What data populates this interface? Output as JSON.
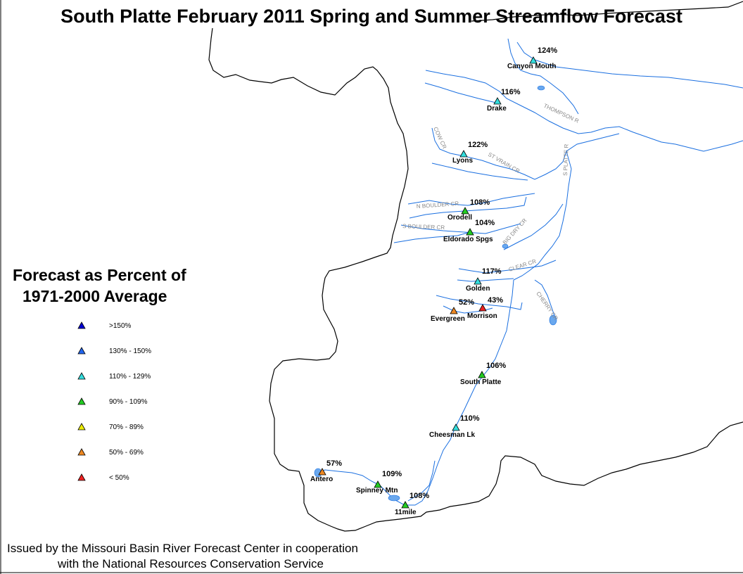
{
  "title": "South Platte February 2011 Spring and Summer Streamflow Forecast",
  "legend": {
    "title_line1": "Forecast as Percent of",
    "title_line2": "1971-2000 Average",
    "items": [
      {
        "label": ">150%",
        "color": "#0000d0"
      },
      {
        "label": "130% - 150%",
        "color": "#2266ee"
      },
      {
        "label": "110% - 129%",
        "color": "#33dddd"
      },
      {
        "label": "90% - 109%",
        "color": "#22cc22"
      },
      {
        "label": "70% - 89%",
        "color": "#eeee00"
      },
      {
        "label": "50% - 69%",
        "color": "#ee8822"
      },
      {
        "label": "< 50%",
        "color": "#ee2222"
      }
    ]
  },
  "stations": [
    {
      "name": "Canyon Mouth",
      "percent": "124%",
      "color": "#33dddd"
    },
    {
      "name": "Drake",
      "percent": "116%",
      "color": "#33dddd"
    },
    {
      "name": "Lyons",
      "percent": "122%",
      "color": "#33dddd"
    },
    {
      "name": "Orodell",
      "percent": "108%",
      "color": "#22cc22"
    },
    {
      "name": "Eldorado Spgs",
      "percent": "104%",
      "color": "#22cc22"
    },
    {
      "name": "Golden",
      "percent": "117%",
      "color": "#33dddd"
    },
    {
      "name": "Evergreen",
      "percent": "52%",
      "color": "#ee8822"
    },
    {
      "name": "Morrison",
      "percent": "43%",
      "color": "#ee2222"
    },
    {
      "name": "South Platte",
      "percent": "106%",
      "color": "#22cc22"
    },
    {
      "name": "Cheesman Lk",
      "percent": "110%",
      "color": "#33dddd"
    },
    {
      "name": "Antero",
      "percent": "57%",
      "color": "#ee8822"
    },
    {
      "name": "Spinney Mtn",
      "percent": "109%",
      "color": "#22cc22"
    },
    {
      "name": "11mile",
      "percent": "108%",
      "color": "#22cc22"
    }
  ],
  "river_labels": [
    "THOMPSON R",
    "COW CR",
    "ST VRAIN CR",
    "S PLATTE R",
    "N BOULDER CR",
    "S BOULDER CR",
    "BIG DRY CR",
    "CLEAR CR",
    "CHERRY CR"
  ],
  "footer": {
    "line1": "Issued by the Missouri Basin River Forecast Center in cooperation",
    "line2": "with the National Resources Conservation Service"
  }
}
